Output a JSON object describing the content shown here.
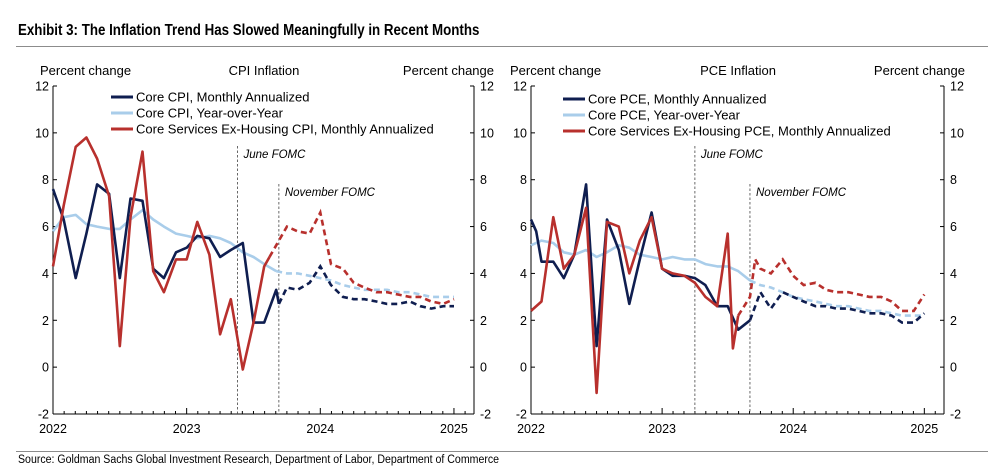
{
  "title": "Exhibit 3: The Inflation Trend Has Slowed Meaningfully in Recent Months",
  "source": "Source: Goldman Sachs Global Investment Research, Department of Labor, Department of Commerce",
  "colors": {
    "navy": "#0f1e50",
    "lightblue": "#a9cdea",
    "red": "#b8302d",
    "axis": "#000000"
  },
  "chart_data": [
    {
      "type": "line",
      "title": "CPI Inflation",
      "ylabel_left": "Percent change",
      "ylabel_right": "Percent change",
      "ylim": [
        -2,
        12
      ],
      "yticks": [
        "-2",
        "0",
        "2",
        "4",
        "6",
        "8",
        "10",
        "12"
      ],
      "xlim": [
        2022.0,
        2025.15
      ],
      "xticks": [
        "2022",
        "2023",
        "2024",
        "2025"
      ],
      "annotations": [
        {
          "label": "June FOMC",
          "x": 2023.38
        },
        {
          "label": "November FOMC",
          "x": 2023.69
        }
      ],
      "series": [
        {
          "name": "Core CPI, Monthly Annualized",
          "color": "navy",
          "legend": "solid",
          "solid": [
            [
              2022.0,
              7.6
            ],
            [
              2022.08,
              6.3
            ],
            [
              2022.17,
              3.8
            ],
            [
              2022.25,
              5.7
            ],
            [
              2022.33,
              7.8
            ],
            [
              2022.42,
              7.4
            ],
            [
              2022.5,
              3.8
            ],
            [
              2022.58,
              7.2
            ],
            [
              2022.67,
              7.1
            ],
            [
              2022.75,
              4.2
            ],
            [
              2022.83,
              3.8
            ],
            [
              2022.92,
              4.9
            ],
            [
              2023.0,
              5.1
            ],
            [
              2023.08,
              5.6
            ],
            [
              2023.17,
              5.5
            ],
            [
              2023.25,
              4.7
            ],
            [
              2023.33,
              5.0
            ],
            [
              2023.42,
              5.3
            ],
            [
              2023.5,
              1.9
            ],
            [
              2023.58,
              1.9
            ],
            [
              2023.67,
              3.3
            ],
            [
              2023.69,
              2.7
            ]
          ],
          "dashed": [
            [
              2023.69,
              2.7
            ],
            [
              2023.75,
              3.4
            ],
            [
              2023.83,
              3.3
            ],
            [
              2023.92,
              3.6
            ],
            [
              2024.0,
              4.3
            ],
            [
              2024.08,
              3.5
            ],
            [
              2024.17,
              3.0
            ],
            [
              2024.25,
              2.9
            ],
            [
              2024.33,
              2.9
            ],
            [
              2024.42,
              2.8
            ],
            [
              2024.5,
              2.7
            ],
            [
              2024.58,
              2.7
            ],
            [
              2024.67,
              2.8
            ],
            [
              2024.75,
              2.6
            ],
            [
              2024.83,
              2.5
            ],
            [
              2024.92,
              2.6
            ],
            [
              2025.0,
              2.6
            ]
          ]
        },
        {
          "name": "Core CPI, Year-over-Year",
          "color": "lightblue",
          "legend": "solid",
          "solid": [
            [
              2022.0,
              5.8
            ],
            [
              2022.08,
              6.4
            ],
            [
              2022.17,
              6.5
            ],
            [
              2022.25,
              6.1
            ],
            [
              2022.33,
              6.0
            ],
            [
              2022.42,
              5.9
            ],
            [
              2022.5,
              5.9
            ],
            [
              2022.58,
              6.3
            ],
            [
              2022.67,
              6.7
            ],
            [
              2022.75,
              6.3
            ],
            [
              2022.83,
              6.0
            ],
            [
              2022.92,
              5.7
            ],
            [
              2023.0,
              5.6
            ],
            [
              2023.08,
              5.5
            ],
            [
              2023.17,
              5.6
            ],
            [
              2023.25,
              5.5
            ],
            [
              2023.33,
              5.3
            ],
            [
              2023.42,
              4.9
            ],
            [
              2023.5,
              4.7
            ],
            [
              2023.58,
              4.4
            ],
            [
              2023.67,
              4.1
            ]
          ],
          "dashed": [
            [
              2023.67,
              4.1
            ],
            [
              2023.75,
              4.0
            ],
            [
              2023.83,
              4.0
            ],
            [
              2023.92,
              3.9
            ],
            [
              2024.0,
              3.8
            ],
            [
              2024.08,
              3.7
            ],
            [
              2024.17,
              3.5
            ],
            [
              2024.25,
              3.4
            ],
            [
              2024.33,
              3.3
            ],
            [
              2024.42,
              3.3
            ],
            [
              2024.5,
              3.3
            ],
            [
              2024.58,
              3.2
            ],
            [
              2024.67,
              3.2
            ],
            [
              2024.75,
              3.1
            ],
            [
              2024.83,
              3.0
            ],
            [
              2024.92,
              3.0
            ],
            [
              2025.0,
              3.0
            ]
          ]
        },
        {
          "name": "Core Services Ex-Housing CPI, Monthly Annualized",
          "color": "red",
          "legend": "solid",
          "solid": [
            [
              2022.0,
              4.3
            ],
            [
              2022.08,
              6.9
            ],
            [
              2022.17,
              9.4
            ],
            [
              2022.25,
              9.8
            ],
            [
              2022.33,
              8.9
            ],
            [
              2022.42,
              7.3
            ],
            [
              2022.5,
              0.9
            ],
            [
              2022.58,
              6.4
            ],
            [
              2022.67,
              9.2
            ],
            [
              2022.75,
              4.1
            ],
            [
              2022.83,
              3.2
            ],
            [
              2022.92,
              4.6
            ],
            [
              2023.0,
              4.6
            ],
            [
              2023.08,
              6.2
            ],
            [
              2023.17,
              4.8
            ],
            [
              2023.25,
              1.4
            ],
            [
              2023.33,
              2.9
            ],
            [
              2023.42,
              -0.1
            ],
            [
              2023.5,
              1.9
            ],
            [
              2023.58,
              4.3
            ],
            [
              2023.62,
              4.7
            ]
          ],
          "dashed": [
            [
              2023.62,
              4.7
            ],
            [
              2023.67,
              5.2
            ],
            [
              2023.75,
              6.0
            ],
            [
              2023.83,
              5.8
            ],
            [
              2023.92,
              5.7
            ],
            [
              2024.0,
              6.6
            ],
            [
              2024.08,
              4.4
            ],
            [
              2024.17,
              4.2
            ],
            [
              2024.25,
              3.6
            ],
            [
              2024.33,
              3.4
            ],
            [
              2024.42,
              3.2
            ],
            [
              2024.5,
              3.2
            ],
            [
              2024.58,
              3.1
            ],
            [
              2024.67,
              3.0
            ],
            [
              2024.75,
              3.0
            ],
            [
              2024.83,
              2.8
            ],
            [
              2024.92,
              2.7
            ],
            [
              2025.0,
              2.9
            ]
          ]
        }
      ]
    },
    {
      "type": "line",
      "title": "PCE Inflation",
      "ylabel_left": "Percent change",
      "ylabel_right": "Percent change",
      "ylim": [
        -2,
        12
      ],
      "yticks": [
        "-2",
        "0",
        "2",
        "4",
        "6",
        "8",
        "10",
        "12"
      ],
      "xlim": [
        2022.0,
        2025.15
      ],
      "xticks": [
        "2022",
        "2023",
        "2024",
        "2025"
      ],
      "annotations": [
        {
          "label": "June FOMC",
          "x": 2023.25
        },
        {
          "label": "November FOMC",
          "x": 2023.67
        }
      ],
      "series": [
        {
          "name": "Core PCE, Monthly Annualized",
          "color": "navy",
          "legend": "solid",
          "solid": [
            [
              2022.0,
              6.3
            ],
            [
              2022.04,
              5.8
            ],
            [
              2022.08,
              4.5
            ],
            [
              2022.17,
              4.5
            ],
            [
              2022.25,
              3.8
            ],
            [
              2022.33,
              4.8
            ],
            [
              2022.42,
              7.8
            ],
            [
              2022.5,
              0.9
            ],
            [
              2022.58,
              6.3
            ],
            [
              2022.67,
              5.0
            ],
            [
              2022.75,
              2.7
            ],
            [
              2022.83,
              4.6
            ],
            [
              2022.92,
              6.6
            ],
            [
              2023.0,
              4.2
            ],
            [
              2023.08,
              3.9
            ],
            [
              2023.17,
              3.9
            ],
            [
              2023.25,
              3.8
            ],
            [
              2023.33,
              3.5
            ],
            [
              2023.42,
              2.6
            ],
            [
              2023.5,
              2.6
            ],
            [
              2023.58,
              1.6
            ],
            [
              2023.67,
              2.0
            ]
          ],
          "dashed": [
            [
              2023.67,
              2.0
            ],
            [
              2023.75,
              3.2
            ],
            [
              2023.83,
              2.5
            ],
            [
              2023.92,
              3.2
            ],
            [
              2024.0,
              3.0
            ],
            [
              2024.08,
              2.8
            ],
            [
              2024.17,
              2.6
            ],
            [
              2024.25,
              2.6
            ],
            [
              2024.33,
              2.5
            ],
            [
              2024.42,
              2.5
            ],
            [
              2024.5,
              2.4
            ],
            [
              2024.58,
              2.3
            ],
            [
              2024.67,
              2.3
            ],
            [
              2024.75,
              2.2
            ],
            [
              2024.83,
              1.9
            ],
            [
              2024.92,
              1.9
            ],
            [
              2025.0,
              2.3
            ]
          ]
        },
        {
          "name": "Core PCE, Year-over-Year",
          "color": "lightblue",
          "legend": "solid",
          "solid": [
            [
              2022.0,
              5.2
            ],
            [
              2022.08,
              5.4
            ],
            [
              2022.17,
              5.3
            ],
            [
              2022.25,
              4.9
            ],
            [
              2022.33,
              4.8
            ],
            [
              2022.42,
              5.0
            ],
            [
              2022.5,
              4.7
            ],
            [
              2022.58,
              4.9
            ],
            [
              2022.67,
              5.2
            ],
            [
              2022.75,
              5.1
            ],
            [
              2022.83,
              4.8
            ],
            [
              2022.92,
              4.7
            ],
            [
              2023.0,
              4.6
            ],
            [
              2023.08,
              4.7
            ],
            [
              2023.17,
              4.6
            ],
            [
              2023.25,
              4.6
            ],
            [
              2023.33,
              4.4
            ],
            [
              2023.42,
              4.3
            ],
            [
              2023.5,
              4.3
            ],
            [
              2023.58,
              4.1
            ],
            [
              2023.67,
              3.7
            ]
          ],
          "dashed": [
            [
              2023.67,
              3.7
            ],
            [
              2023.75,
              3.5
            ],
            [
              2023.83,
              3.4
            ],
            [
              2023.92,
              3.2
            ],
            [
              2024.0,
              3.0
            ],
            [
              2024.08,
              2.9
            ],
            [
              2024.17,
              2.8
            ],
            [
              2024.25,
              2.7
            ],
            [
              2024.33,
              2.6
            ],
            [
              2024.42,
              2.6
            ],
            [
              2024.5,
              2.5
            ],
            [
              2024.58,
              2.4
            ],
            [
              2024.67,
              2.4
            ],
            [
              2024.75,
              2.3
            ],
            [
              2024.83,
              2.2
            ],
            [
              2024.92,
              2.2
            ],
            [
              2025.0,
              2.2
            ]
          ]
        },
        {
          "name": "Core Services Ex-Housing PCE, Monthly Annualized",
          "color": "red",
          "legend": "solid",
          "solid": [
            [
              2022.0,
              2.4
            ],
            [
              2022.08,
              2.8
            ],
            [
              2022.17,
              6.4
            ],
            [
              2022.25,
              4.2
            ],
            [
              2022.33,
              4.8
            ],
            [
              2022.42,
              6.8
            ],
            [
              2022.5,
              -1.1
            ],
            [
              2022.58,
              6.2
            ],
            [
              2022.67,
              6.0
            ],
            [
              2022.75,
              4.0
            ],
            [
              2022.83,
              5.4
            ],
            [
              2022.92,
              6.4
            ],
            [
              2023.0,
              4.2
            ],
            [
              2023.08,
              4.0
            ],
            [
              2023.17,
              3.9
            ],
            [
              2023.25,
              3.6
            ],
            [
              2023.33,
              3.0
            ],
            [
              2023.42,
              2.6
            ],
            [
              2023.5,
              5.7
            ],
            [
              2023.54,
              0.8
            ],
            [
              2023.58,
              2.2
            ]
          ],
          "dashed": [
            [
              2023.58,
              2.2
            ],
            [
              2023.67,
              3.0
            ],
            [
              2023.71,
              4.6
            ],
            [
              2023.75,
              4.2
            ],
            [
              2023.83,
              4.0
            ],
            [
              2023.92,
              4.6
            ],
            [
              2024.0,
              3.9
            ],
            [
              2024.08,
              3.5
            ],
            [
              2024.17,
              3.6
            ],
            [
              2024.25,
              3.3
            ],
            [
              2024.33,
              3.2
            ],
            [
              2024.42,
              3.2
            ],
            [
              2024.5,
              3.1
            ],
            [
              2024.58,
              3.0
            ],
            [
              2024.67,
              3.0
            ],
            [
              2024.75,
              2.8
            ],
            [
              2024.83,
              2.4
            ],
            [
              2024.92,
              2.4
            ],
            [
              2025.0,
              3.1
            ]
          ]
        }
      ]
    }
  ]
}
